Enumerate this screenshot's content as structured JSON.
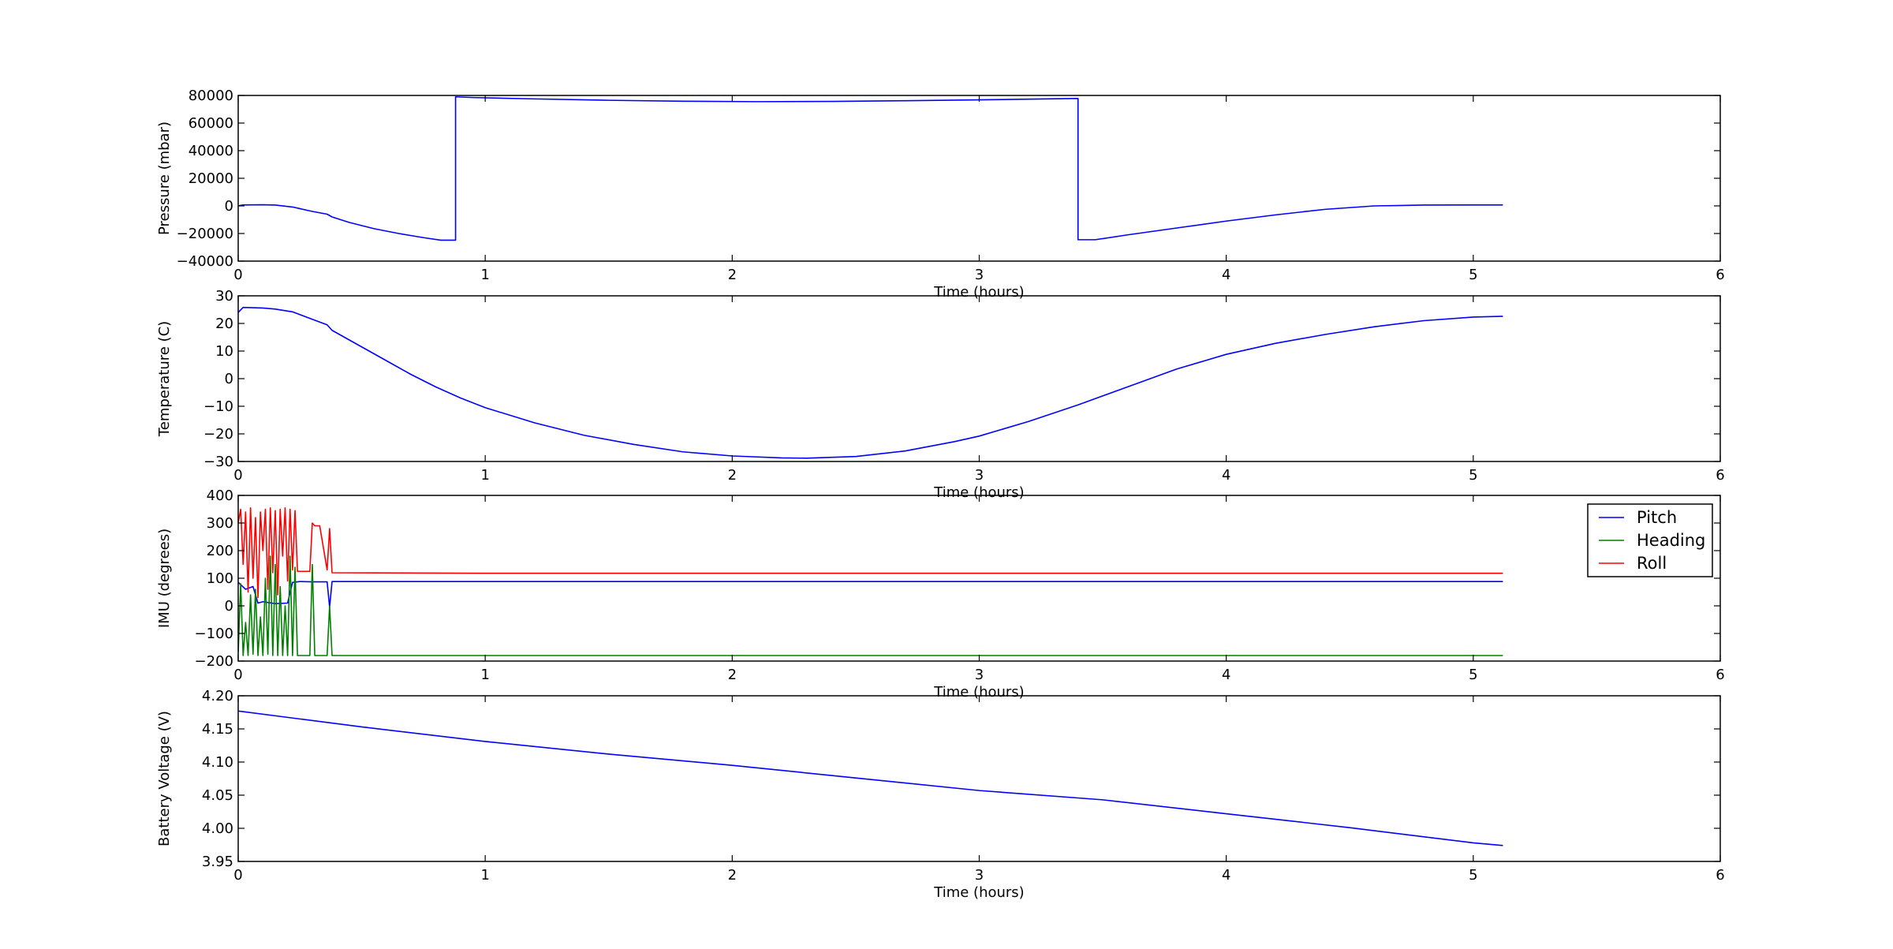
{
  "chart_data": [
    {
      "type": "line",
      "xlabel": "Time (hours)",
      "ylabel": "Pressure (mbar)",
      "xlim": [
        0,
        6
      ],
      "ylim": [
        -40000,
        80000
      ],
      "xticks": [
        "0",
        "1",
        "2",
        "3",
        "4",
        "5",
        "6"
      ],
      "yticks": [
        "−40000",
        "−20000",
        "0",
        "20000",
        "40000",
        "60000",
        "80000"
      ],
      "ytick_values": [
        -40000,
        -20000,
        0,
        20000,
        40000,
        60000,
        80000
      ],
      "grid": false,
      "series": [
        {
          "color": "#0000ff",
          "x": [
            0,
            0.02,
            0.1,
            0.15,
            0.22,
            0.3,
            0.36,
            0.38,
            0.45,
            0.55,
            0.65,
            0.75,
            0.82,
            0.88,
            0.88,
            0.95,
            1.2,
            1.5,
            1.8,
            2.1,
            2.4,
            2.7,
            3.0,
            3.2,
            3.4,
            3.4,
            3.47,
            3.6,
            3.8,
            4.0,
            4.2,
            4.4,
            4.6,
            4.8,
            5.0,
            5.12
          ],
          "y": [
            0,
            700,
            800,
            600,
            -800,
            -4000,
            -6000,
            -8000,
            -12000,
            -16500,
            -20000,
            -23000,
            -24800,
            -24800,
            79000,
            78500,
            77500,
            76500,
            75800,
            75500,
            75700,
            76200,
            76800,
            77300,
            77800,
            -24500,
            -24500,
            -21000,
            -16000,
            -11000,
            -6500,
            -2500,
            0,
            600,
            700,
            700
          ]
        }
      ]
    },
    {
      "type": "line",
      "xlabel": "Time (hours)",
      "ylabel": "Temperature (C)",
      "xlim": [
        0,
        6
      ],
      "ylim": [
        -30,
        30
      ],
      "xticks": [
        "0",
        "1",
        "2",
        "3",
        "4",
        "5",
        "6"
      ],
      "yticks": [
        "−30",
        "−20",
        "−10",
        "0",
        "10",
        "20",
        "30"
      ],
      "ytick_values": [
        -30,
        -20,
        -10,
        0,
        10,
        20,
        30
      ],
      "grid": false,
      "series": [
        {
          "color": "#0000ff",
          "x": [
            0,
            0.02,
            0.1,
            0.15,
            0.22,
            0.3,
            0.36,
            0.38,
            0.5,
            0.6,
            0.7,
            0.8,
            0.9,
            1.0,
            1.2,
            1.4,
            1.6,
            1.8,
            2.0,
            2.2,
            2.3,
            2.5,
            2.7,
            2.9,
            3.0,
            3.2,
            3.4,
            3.6,
            3.8,
            4.0,
            4.2,
            4.4,
            4.6,
            4.8,
            5.0,
            5.12
          ],
          "y": [
            24,
            25.8,
            25.6,
            25.2,
            24.2,
            21.5,
            19.5,
            17.5,
            11.5,
            6.5,
            1.5,
            -3,
            -7,
            -10.5,
            -16,
            -20.5,
            -23.8,
            -26.5,
            -28,
            -28.7,
            -28.8,
            -28.2,
            -26.2,
            -22.8,
            -20.8,
            -15.5,
            -9.5,
            -3,
            3.5,
            8.8,
            12.8,
            16,
            18.8,
            21,
            22.3,
            22.6
          ]
        }
      ]
    },
    {
      "type": "line",
      "xlabel": "Time (hours)",
      "ylabel": "IMU (degrees)",
      "xlim": [
        0,
        6
      ],
      "ylim": [
        -200,
        400
      ],
      "xticks": [
        "0",
        "1",
        "2",
        "3",
        "4",
        "5",
        "6"
      ],
      "yticks": [
        "−200",
        "−100",
        "0",
        "100",
        "200",
        "300",
        "400"
      ],
      "ytick_values": [
        -200,
        -100,
        0,
        100,
        200,
        300,
        400
      ],
      "grid": false,
      "legend_position": "top-right",
      "series": [
        {
          "name": "Pitch",
          "color": "#0000ff",
          "x": [
            0,
            0.03,
            0.06,
            0.08,
            0.1,
            0.15,
            0.2,
            0.22,
            0.25,
            0.3,
            0.36,
            0.37,
            0.38,
            0.5,
            1.0,
            2.0,
            3.0,
            4.0,
            5.0,
            5.12
          ],
          "y": [
            85,
            60,
            70,
            10,
            15,
            8,
            10,
            85,
            88,
            87,
            87,
            -5,
            88,
            88,
            88,
            88,
            88,
            88,
            88,
            88
          ]
        },
        {
          "name": "Heading",
          "color": "#008000",
          "x": [
            0,
            0.01,
            0.02,
            0.03,
            0.04,
            0.05,
            0.06,
            0.07,
            0.08,
            0.09,
            0.1,
            0.11,
            0.12,
            0.13,
            0.14,
            0.15,
            0.16,
            0.17,
            0.18,
            0.19,
            0.2,
            0.21,
            0.22,
            0.23,
            0.24,
            0.29,
            0.3,
            0.31,
            0.36,
            0.37,
            0.38,
            1.0,
            2.0,
            3.0,
            4.0,
            5.0,
            5.12
          ],
          "y": [
            -170,
            80,
            -180,
            -60,
            -180,
            40,
            -175,
            60,
            -180,
            -40,
            -180,
            100,
            -175,
            180,
            -180,
            150,
            -180,
            70,
            -180,
            0,
            -180,
            180,
            -180,
            140,
            -180,
            -180,
            150,
            -180,
            -180,
            0,
            -180,
            -180,
            -180,
            -180,
            -180,
            -180,
            -180
          ]
        },
        {
          "name": "Roll",
          "color": "#ff0000",
          "x": [
            0,
            0.01,
            0.02,
            0.03,
            0.04,
            0.05,
            0.06,
            0.07,
            0.08,
            0.09,
            0.1,
            0.11,
            0.12,
            0.13,
            0.14,
            0.15,
            0.16,
            0.17,
            0.18,
            0.19,
            0.2,
            0.21,
            0.22,
            0.23,
            0.24,
            0.29,
            0.3,
            0.31,
            0.33,
            0.36,
            0.37,
            0.38,
            1.0,
            2.0,
            3.0,
            4.0,
            5.0,
            5.12
          ],
          "y": [
            300,
            350,
            150,
            340,
            50,
            355,
            100,
            320,
            30,
            340,
            200,
            350,
            60,
            355,
            120,
            345,
            40,
            350,
            180,
            355,
            90,
            350,
            130,
            345,
            125,
            125,
            300,
            290,
            290,
            130,
            280,
            120,
            118,
            118,
            118,
            118,
            118,
            118
          ]
        }
      ]
    },
    {
      "type": "line",
      "xlabel": "Time (hours)",
      "ylabel": "Battery Voltage (V)",
      "xlim": [
        0,
        6
      ],
      "ylim": [
        3.95,
        4.2
      ],
      "xticks": [
        "0",
        "1",
        "2",
        "3",
        "4",
        "5",
        "6"
      ],
      "yticks": [
        "3.95",
        "4.00",
        "4.05",
        "4.10",
        "4.15",
        "4.20"
      ],
      "ytick_values": [
        3.95,
        4.0,
        4.05,
        4.1,
        4.15,
        4.2
      ],
      "grid": false,
      "series": [
        {
          "color": "#0000ff",
          "x": [
            0,
            0.5,
            1.0,
            1.5,
            2.0,
            2.5,
            3.0,
            3.5,
            4.0,
            4.5,
            5.0,
            5.12
          ],
          "y": [
            4.177,
            4.153,
            4.131,
            4.112,
            4.095,
            4.076,
            4.057,
            4.043,
            4.022,
            4.001,
            3.978,
            3.974
          ]
        }
      ]
    }
  ]
}
